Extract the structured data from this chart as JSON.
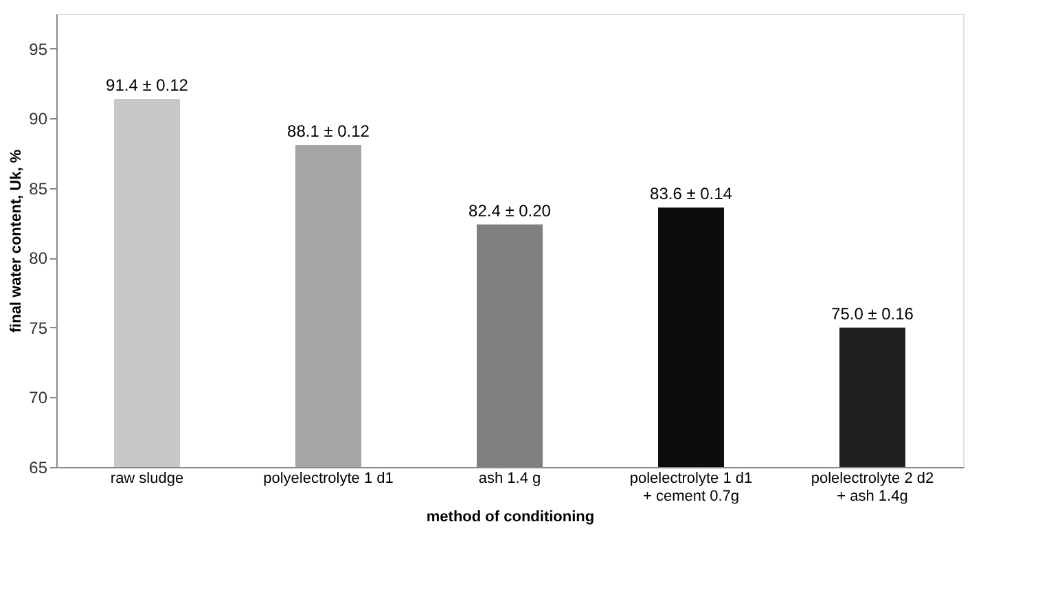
{
  "chart_data": {
    "type": "bar",
    "xlabel": "method of conditioning",
    "ylabel": "final  water content, Uk, %",
    "categories": [
      "raw sludge",
      "polyelectrolyte 1 d1",
      "ash 1.4 g",
      "polelectrolyte 1 d1\n+ cement 0.7g",
      "polelectrolyte 2 d2\n+ ash 1.4g"
    ],
    "values": [
      91.4,
      88.1,
      82.4,
      83.6,
      75.0
    ],
    "value_labels": [
      "91.4 ± 0.12",
      "88.1 ± 0.12",
      "82.4 ± 0.20",
      "83.6 ± 0.14",
      "75.0 ± 0.16"
    ],
    "colors": [
      "#c8c8c8",
      "#a5a5a5",
      "#7f7f7f",
      "#0d0d0d",
      "#202020"
    ],
    "ylim": [
      65,
      97.5
    ],
    "yticks": [
      65,
      70,
      75,
      80,
      85,
      90,
      95
    ],
    "grid": false
  }
}
